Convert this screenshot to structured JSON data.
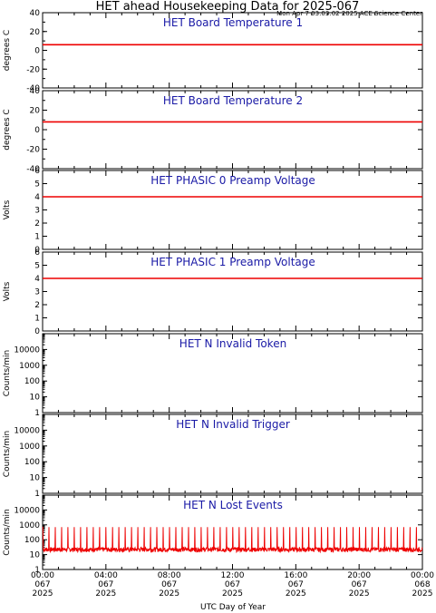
{
  "header": {
    "title": "HET ahead Housekeeping Data for 2025-067",
    "timestamp": "Mon Apr  7 03:03:02 2025 ACE Science Center"
  },
  "x_axis": {
    "label": "UTC Day of Year",
    "ticks": [
      {
        "time": "00:00",
        "doy": "067",
        "year": "2025"
      },
      {
        "time": "04:00",
        "doy": "067",
        "year": "2025"
      },
      {
        "time": "08:00",
        "doy": "067",
        "year": "2025"
      },
      {
        "time": "12:00",
        "doy": "067",
        "year": "2025"
      },
      {
        "time": "16:00",
        "doy": "067",
        "year": "2025"
      },
      {
        "time": "20:00",
        "doy": "067",
        "year": "2025"
      },
      {
        "time": "00:00",
        "doy": "068",
        "year": "2025"
      }
    ]
  },
  "colors": {
    "data": "#ee0000",
    "title": "#1a1aa6",
    "axis": "#000000"
  },
  "chart_data": [
    {
      "type": "line",
      "title": "HET Board Temperature 1",
      "ylabel": "degrees C",
      "scale": "linear",
      "ylim": [
        -40,
        40
      ],
      "yticks": [
        40,
        20,
        0,
        -20,
        -40
      ],
      "x": [
        0,
        24
      ],
      "xunit": "hours",
      "series": [
        {
          "values": [
            6,
            6
          ]
        }
      ]
    },
    {
      "type": "line",
      "title": "HET Board Temperature 2",
      "ylabel": "degrees C",
      "scale": "linear",
      "ylim": [
        -40,
        40
      ],
      "yticks": [
        40,
        20,
        0,
        -20,
        -40
      ],
      "x": [
        0,
        24
      ],
      "xunit": "hours",
      "series": [
        {
          "values": [
            8,
            8
          ]
        }
      ]
    },
    {
      "type": "line",
      "title": "HET PHASIC 0 Preamp Voltage",
      "ylabel": "Volts",
      "scale": "linear",
      "ylim": [
        0,
        6
      ],
      "yticks": [
        6,
        5,
        4,
        3,
        2,
        1,
        0
      ],
      "x": [
        0,
        24
      ],
      "xunit": "hours",
      "series": [
        {
          "values": [
            4,
            4
          ]
        }
      ]
    },
    {
      "type": "line",
      "title": "HET PHASIC 1 Preamp Voltage",
      "ylabel": "Volts",
      "scale": "linear",
      "ylim": [
        0,
        6
      ],
      "yticks": [
        6,
        5,
        4,
        3,
        2,
        1,
        0
      ],
      "x": [
        0,
        24
      ],
      "xunit": "hours",
      "series": [
        {
          "values": [
            4,
            4
          ]
        }
      ]
    },
    {
      "type": "line",
      "title": "HET N Invalid Token",
      "ylabel": "Counts/min",
      "scale": "log",
      "ylim": [
        1,
        100000
      ],
      "yticks": [
        10000,
        1000,
        100,
        10,
        1
      ],
      "x": [
        0,
        24
      ],
      "xunit": "hours",
      "series": []
    },
    {
      "type": "line",
      "title": "HET N Invalid Trigger",
      "ylabel": "Counts/min",
      "scale": "log",
      "ylim": [
        1,
        100000
      ],
      "yticks": [
        10000,
        1000,
        100,
        10,
        1
      ],
      "x": [
        0,
        24
      ],
      "xunit": "hours",
      "series": []
    },
    {
      "type": "line",
      "title": "HET N Lost Events",
      "ylabel": "Counts/min",
      "scale": "log",
      "ylim": [
        1,
        100000
      ],
      "yticks": [
        10000,
        1000,
        100,
        10,
        1
      ],
      "x": [
        0,
        24
      ],
      "xunit": "hours",
      "pattern": {
        "baseline": [
          15,
          30
        ],
        "spike_peak": 700,
        "spike_period_hours": 0.4
      },
      "series": []
    }
  ]
}
